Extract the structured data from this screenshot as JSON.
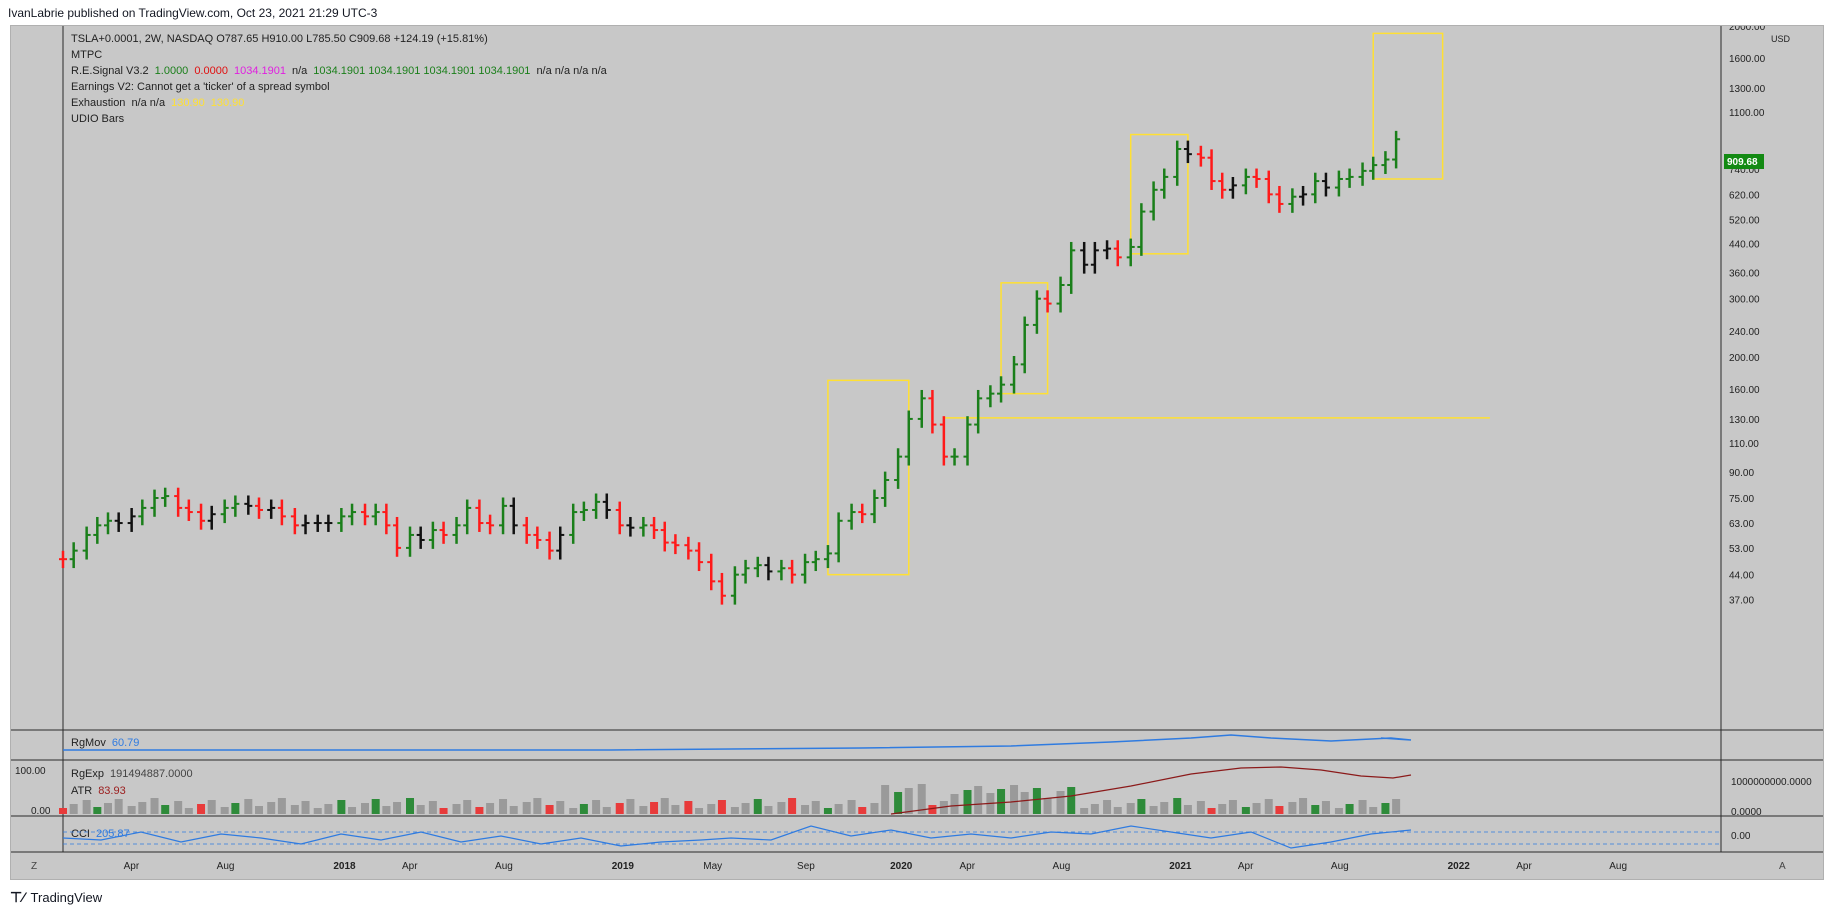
{
  "header": {
    "published_line": "IvanLabrie published on TradingView.com, Oct 23, 2021 21:29 UTC-3"
  },
  "footer": {
    "brand": "TradingView",
    "logo_icon": "tradingview-logo-icon"
  },
  "legend": {
    "symbol_line": "TSLA+0.0001, 2W, NASDAQ  O787.65  H910.00  L785.50  C909.68  +124.19 (+15.81%)",
    "lines": [
      "MTPC",
      "Earnings V2: Cannot get a 'ticker' of a spread symbol",
      "UDIO Bars"
    ],
    "re_signal": {
      "name": "R.E.Signal V3.2",
      "v1": "1.0000",
      "v2": "0.0000",
      "v3": "1034.1901",
      "rest_a": "n/a",
      "rest_b": "1034.1901  1034.1901  1034.1901  1034.1901",
      "rest_c": "n/a  n/a  n/a  n/a"
    },
    "exhaustion": {
      "name": "Exhaustion",
      "na": "n/a  n/a",
      "v1": "130.90",
      "v2": "130.90"
    }
  },
  "colors": {
    "up": "#1a7f1a",
    "down": "#ff1a1a",
    "neutral": "#111111",
    "boxes": "#ffe033",
    "blue": "#2f7be0",
    "price_badge": "#138a13"
  },
  "chart_data": {
    "type": "candlestick",
    "symbol": "TSLA+0.0001",
    "interval": "2W",
    "scale": "log",
    "currency": "USD",
    "last_price": "909.68",
    "ylim": [
      33,
      2000
    ],
    "y_ticks": [
      "2000.00",
      "1600.00",
      "1300.00",
      "1100.00",
      "740.00",
      "620.00",
      "520.00",
      "440.00",
      "360.00",
      "300.00",
      "240.00",
      "200.00",
      "160.00",
      "130.00",
      "110.00",
      "90.00",
      "75.00",
      "63.00",
      "53.00",
      "44.00",
      "37.00"
    ],
    "x_ticks": [
      "Apr",
      "Aug",
      "2018",
      "Apr",
      "Aug",
      "2019",
      "May",
      "Sep",
      "2020",
      "Apr",
      "Aug",
      "2021",
      "Apr",
      "Aug",
      "2022",
      "Apr",
      "Aug"
    ],
    "bars": [
      {
        "d": "2017-01-01",
        "c": 49,
        "col": "down"
      },
      {
        "d": "2017-01-15",
        "c": 52,
        "col": "up"
      },
      {
        "d": "2017-02-01",
        "c": 58,
        "col": "up"
      },
      {
        "d": "2017-02-15",
        "c": 62,
        "col": "up"
      },
      {
        "d": "2017-03-01",
        "c": 64,
        "col": "up"
      },
      {
        "d": "2017-03-15",
        "c": 63,
        "col": "neutral"
      },
      {
        "d": "2017-04-01",
        "c": 66,
        "col": "neutral"
      },
      {
        "d": "2017-04-15",
        "c": 70,
        "col": "up"
      },
      {
        "d": "2017-05-01",
        "c": 75,
        "col": "up"
      },
      {
        "d": "2017-05-15",
        "c": 76,
        "col": "up"
      },
      {
        "d": "2017-06-01",
        "c": 70,
        "col": "down"
      },
      {
        "d": "2017-06-15",
        "c": 68,
        "col": "down"
      },
      {
        "d": "2017-07-01",
        "c": 64,
        "col": "down"
      },
      {
        "d": "2017-07-15",
        "c": 67,
        "col": "neutral"
      },
      {
        "d": "2017-08-01",
        "c": 70,
        "col": "up"
      },
      {
        "d": "2017-08-15",
        "c": 72,
        "col": "up"
      },
      {
        "d": "2017-09-01",
        "c": 71,
        "col": "neutral"
      },
      {
        "d": "2017-09-15",
        "c": 69,
        "col": "down"
      },
      {
        "d": "2017-10-01",
        "c": 70,
        "col": "neutral"
      },
      {
        "d": "2017-10-15",
        "c": 66,
        "col": "down"
      },
      {
        "d": "2017-11-01",
        "c": 62,
        "col": "down"
      },
      {
        "d": "2017-11-15",
        "c": 63,
        "col": "neutral"
      },
      {
        "d": "2017-12-01",
        "c": 63,
        "col": "neutral"
      },
      {
        "d": "2017-12-15",
        "c": 63,
        "col": "neutral"
      },
      {
        "d": "2018-01-01",
        "c": 66,
        "col": "up"
      },
      {
        "d": "2018-01-15",
        "c": 68,
        "col": "up"
      },
      {
        "d": "2018-02-01",
        "c": 66,
        "col": "down"
      },
      {
        "d": "2018-02-15",
        "c": 68,
        "col": "up"
      },
      {
        "d": "2018-03-01",
        "c": 62,
        "col": "down"
      },
      {
        "d": "2018-03-15",
        "c": 53,
        "col": "down"
      },
      {
        "d": "2018-04-01",
        "c": 58,
        "col": "up"
      },
      {
        "d": "2018-04-15",
        "c": 56,
        "col": "neutral"
      },
      {
        "d": "2018-05-01",
        "c": 60,
        "col": "up"
      },
      {
        "d": "2018-05-15",
        "c": 58,
        "col": "down"
      },
      {
        "d": "2018-06-01",
        "c": 62,
        "col": "up"
      },
      {
        "d": "2018-06-15",
        "c": 70,
        "col": "up"
      },
      {
        "d": "2018-07-01",
        "c": 63,
        "col": "down"
      },
      {
        "d": "2018-07-15",
        "c": 62,
        "col": "down"
      },
      {
        "d": "2018-08-01",
        "c": 71,
        "col": "up"
      },
      {
        "d": "2018-08-15",
        "c": 62,
        "col": "neutral"
      },
      {
        "d": "2018-09-01",
        "c": 58,
        "col": "down"
      },
      {
        "d": "2018-09-15",
        "c": 56,
        "col": "down"
      },
      {
        "d": "2018-10-01",
        "c": 52,
        "col": "down"
      },
      {
        "d": "2018-10-15",
        "c": 58,
        "col": "neutral"
      },
      {
        "d": "2018-11-01",
        "c": 68,
        "col": "up"
      },
      {
        "d": "2018-11-15",
        "c": 69,
        "col": "up"
      },
      {
        "d": "2018-12-01",
        "c": 73,
        "col": "up"
      },
      {
        "d": "2018-12-15",
        "c": 69,
        "col": "neutral"
      },
      {
        "d": "2019-01-01",
        "c": 62,
        "col": "down"
      },
      {
        "d": "2019-01-15",
        "c": 61,
        "col": "neutral"
      },
      {
        "d": "2019-02-01",
        "c": 62,
        "col": "up"
      },
      {
        "d": "2019-02-15",
        "c": 60,
        "col": "down"
      },
      {
        "d": "2019-03-01",
        "c": 55,
        "col": "down"
      },
      {
        "d": "2019-03-15",
        "c": 54,
        "col": "down"
      },
      {
        "d": "2019-04-01",
        "c": 52,
        "col": "down"
      },
      {
        "d": "2019-04-15",
        "c": 48,
        "col": "down"
      },
      {
        "d": "2019-05-01",
        "c": 42,
        "col": "down"
      },
      {
        "d": "2019-05-15",
        "c": 38,
        "col": "down"
      },
      {
        "d": "2019-06-01",
        "c": 44,
        "col": "up"
      },
      {
        "d": "2019-06-15",
        "c": 46,
        "col": "up"
      },
      {
        "d": "2019-07-01",
        "c": 47,
        "col": "up"
      },
      {
        "d": "2019-07-15",
        "c": 45,
        "col": "neutral"
      },
      {
        "d": "2019-08-01",
        "c": 46,
        "col": "up"
      },
      {
        "d": "2019-08-15",
        "c": 44,
        "col": "down"
      },
      {
        "d": "2019-09-01",
        "c": 48,
        "col": "up"
      },
      {
        "d": "2019-09-15",
        "c": 49,
        "col": "up"
      },
      {
        "d": "2019-10-01",
        "c": 51,
        "col": "up"
      },
      {
        "d": "2019-10-15",
        "c": 64,
        "col": "up"
      },
      {
        "d": "2019-11-01",
        "c": 68,
        "col": "up"
      },
      {
        "d": "2019-11-15",
        "c": 67,
        "col": "down"
      },
      {
        "d": "2019-12-01",
        "c": 75,
        "col": "up"
      },
      {
        "d": "2019-12-15",
        "c": 85,
        "col": "up"
      },
      {
        "d": "2020-01-01",
        "c": 100,
        "col": "up"
      },
      {
        "d": "2020-01-15",
        "c": 130,
        "col": "up"
      },
      {
        "d": "2020-02-01",
        "c": 150,
        "col": "up"
      },
      {
        "d": "2020-02-15",
        "c": 125,
        "col": "down"
      },
      {
        "d": "2020-03-01",
        "c": 100,
        "col": "down"
      },
      {
        "d": "2020-03-15",
        "c": 100,
        "col": "up"
      },
      {
        "d": "2020-04-01",
        "c": 125,
        "col": "up"
      },
      {
        "d": "2020-04-15",
        "c": 150,
        "col": "up"
      },
      {
        "d": "2020-05-01",
        "c": 155,
        "col": "up"
      },
      {
        "d": "2020-05-15",
        "c": 165,
        "col": "up"
      },
      {
        "d": "2020-06-01",
        "c": 190,
        "col": "up"
      },
      {
        "d": "2020-06-15",
        "c": 250,
        "col": "up"
      },
      {
        "d": "2020-07-01",
        "c": 300,
        "col": "up"
      },
      {
        "d": "2020-07-15",
        "c": 290,
        "col": "down"
      },
      {
        "d": "2020-08-01",
        "c": 330,
        "col": "up"
      },
      {
        "d": "2020-08-15",
        "c": 420,
        "col": "up"
      },
      {
        "d": "2020-09-01",
        "c": 380,
        "col": "neutral"
      },
      {
        "d": "2020-09-15",
        "c": 420,
        "col": "neutral"
      },
      {
        "d": "2020-10-01",
        "c": 425,
        "col": "neutral"
      },
      {
        "d": "2020-10-15",
        "c": 400,
        "col": "down"
      },
      {
        "d": "2020-11-01",
        "c": 430,
        "col": "up"
      },
      {
        "d": "2020-11-15",
        "c": 550,
        "col": "up"
      },
      {
        "d": "2020-12-01",
        "c": 640,
        "col": "up"
      },
      {
        "d": "2020-12-15",
        "c": 700,
        "col": "up"
      },
      {
        "d": "2021-01-01",
        "c": 850,
        "col": "up"
      },
      {
        "d": "2021-01-15",
        "c": 820,
        "col": "neutral"
      },
      {
        "d": "2021-02-01",
        "c": 800,
        "col": "down"
      },
      {
        "d": "2021-02-15",
        "c": 680,
        "col": "down"
      },
      {
        "d": "2021-03-01",
        "c": 640,
        "col": "down"
      },
      {
        "d": "2021-03-15",
        "c": 660,
        "col": "neutral"
      },
      {
        "d": "2021-04-01",
        "c": 700,
        "col": "up"
      },
      {
        "d": "2021-04-15",
        "c": 690,
        "col": "down"
      },
      {
        "d": "2021-05-01",
        "c": 620,
        "col": "down"
      },
      {
        "d": "2021-05-15",
        "c": 580,
        "col": "down"
      },
      {
        "d": "2021-06-01",
        "c": 610,
        "col": "up"
      },
      {
        "d": "2021-06-15",
        "c": 620,
        "col": "neutral"
      },
      {
        "d": "2021-07-01",
        "c": 680,
        "col": "up"
      },
      {
        "d": "2021-07-15",
        "c": 650,
        "col": "neutral"
      },
      {
        "d": "2021-08-01",
        "c": 690,
        "col": "up"
      },
      {
        "d": "2021-08-15",
        "c": 700,
        "col": "up"
      },
      {
        "d": "2021-09-01",
        "c": 730,
        "col": "up"
      },
      {
        "d": "2021-09-15",
        "c": 760,
        "col": "up"
      },
      {
        "d": "2021-10-01",
        "c": 790,
        "col": "up"
      },
      {
        "d": "2021-10-15",
        "c": 909.68,
        "col": "up"
      }
    ],
    "boxes": [
      {
        "d0": "2019-10-01",
        "d1": "2020-01-15",
        "lo": 44,
        "hi": 170
      },
      {
        "d0": "2020-05-15",
        "d1": "2020-07-15",
        "lo": 155,
        "hi": 335
      },
      {
        "d0": "2020-11-01",
        "d1": "2021-01-15",
        "lo": 410,
        "hi": 940
      },
      {
        "d0": "2021-09-15",
        "d1": "2021-12-15",
        "lo": 690,
        "hi": 1900
      }
    ],
    "level_line": {
      "price": 130.9,
      "d0": "2020-03-01",
      "d1": "2022-02-15"
    },
    "subpanels": {
      "rgmov": {
        "label": "RgMov",
        "value": "60.79"
      },
      "rgexp": {
        "label": "RgExp",
        "value": "191494887.0000",
        "right_axis": [
          "1000000000.0000",
          "0.0000"
        ],
        "left_axis": [
          "100.00",
          "0.00"
        ]
      },
      "atr": {
        "label": "ATR",
        "value": "83.93"
      },
      "cci": {
        "label": "CCI",
        "value": "205.87",
        "right_axis": [
          "0.00"
        ]
      }
    }
  }
}
